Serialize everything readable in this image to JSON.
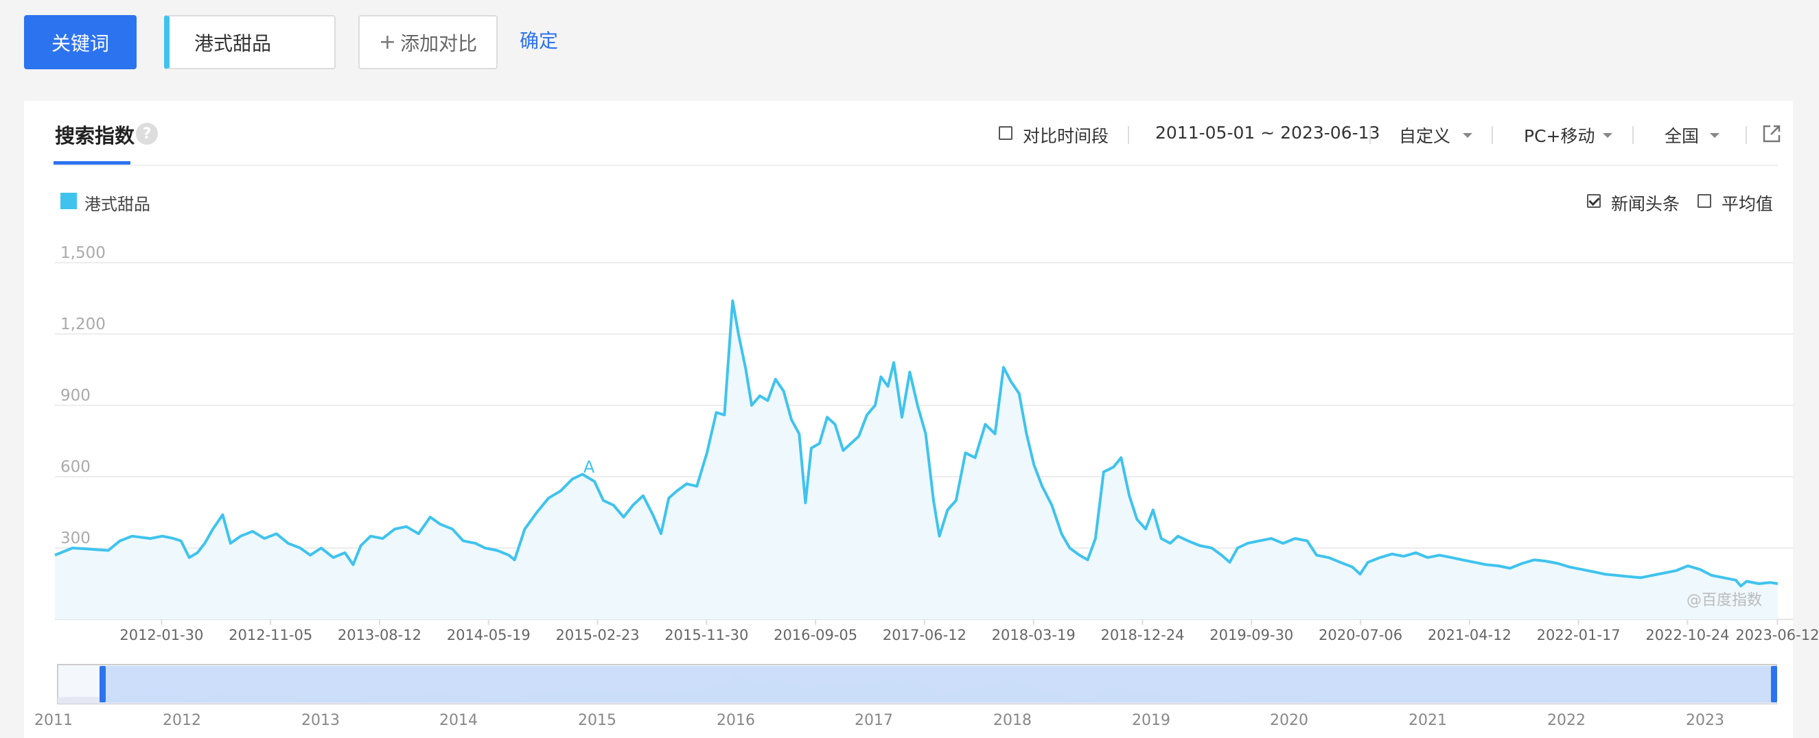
{
  "toolbar": {
    "keyword_button": "关键词",
    "keyword_value": "港式甜品",
    "add_compare_plus": "+",
    "add_compare_label": "添加对比",
    "confirm_link": "确定"
  },
  "panel": {
    "tab_title": "搜索指数",
    "help_icon_text": "?",
    "compare_period_label": "对比时间段",
    "compare_period_checked": false,
    "date_range": "2011-05-01 ~ 2023-06-13",
    "custom_label": "自定义",
    "device_label": "PC+移动",
    "region_label": "全国",
    "news_label": "新闻头条",
    "news_checked": true,
    "average_label": "平均值",
    "average_checked": false,
    "watermark": "@百度指数"
  },
  "colors": {
    "accent": "#2c73f0",
    "series": "#3fc3ee",
    "area_fill": "#eef8fd"
  },
  "chart_data": {
    "type": "area",
    "legend": [
      {
        "name": "港式甜品",
        "color": "#3fc3ee"
      }
    ],
    "y_ticks": [
      "1,500",
      "1,200",
      "900",
      "600",
      "300"
    ],
    "y_tick_values": [
      1500,
      1200,
      900,
      600,
      300
    ],
    "ylim": [
      0,
      1500
    ],
    "x_tick_labels": [
      "2012-01-30",
      "2012-11-05",
      "2013-08-12",
      "2014-05-19",
      "2015-02-23",
      "2015-11-30",
      "2016-09-05",
      "2017-06-12",
      "2018-03-19",
      "2018-12-24",
      "2019-09-30",
      "2020-07-06",
      "2021-04-12",
      "2022-01-17",
      "2022-10-24",
      "2023-06-12"
    ],
    "xlim": [
      "2011-05-01",
      "2023-06-13"
    ],
    "annotations": [
      {
        "label": "A",
        "date": "2015-02-01",
        "value": 600
      }
    ],
    "grid": true,
    "series": [
      {
        "name": "港式甜品",
        "points": [
          [
            "2011-05-01",
            270
          ],
          [
            "2011-06-15",
            300
          ],
          [
            "2011-08-01",
            295
          ],
          [
            "2011-09-15",
            290
          ],
          [
            "2011-10-15",
            330
          ],
          [
            "2011-11-15",
            350
          ],
          [
            "2012-01-01",
            340
          ],
          [
            "2012-02-01",
            350
          ],
          [
            "2012-03-01",
            340
          ],
          [
            "2012-03-20",
            330
          ],
          [
            "2012-04-10",
            260
          ],
          [
            "2012-05-01",
            280
          ],
          [
            "2012-05-20",
            320
          ],
          [
            "2012-06-10",
            380
          ],
          [
            "2012-07-05",
            440
          ],
          [
            "2012-07-25",
            320
          ],
          [
            "2012-08-20",
            350
          ],
          [
            "2012-09-20",
            370
          ],
          [
            "2012-10-20",
            340
          ],
          [
            "2012-11-20",
            360
          ],
          [
            "2012-12-20",
            320
          ],
          [
            "2013-01-20",
            300
          ],
          [
            "2013-02-15",
            270
          ],
          [
            "2013-03-15",
            300
          ],
          [
            "2013-04-15",
            260
          ],
          [
            "2013-05-15",
            280
          ],
          [
            "2013-06-05",
            230
          ],
          [
            "2013-06-25",
            310
          ],
          [
            "2013-07-20",
            350
          ],
          [
            "2013-08-20",
            340
          ],
          [
            "2013-09-20",
            380
          ],
          [
            "2013-10-20",
            390
          ],
          [
            "2013-11-20",
            360
          ],
          [
            "2013-12-20",
            430
          ],
          [
            "2014-01-15",
            400
          ],
          [
            "2014-02-15",
            380
          ],
          [
            "2014-03-15",
            330
          ],
          [
            "2014-04-15",
            320
          ],
          [
            "2014-05-10",
            300
          ],
          [
            "2014-06-10",
            290
          ],
          [
            "2014-07-10",
            270
          ],
          [
            "2014-07-25",
            250
          ],
          [
            "2014-08-20",
            380
          ],
          [
            "2014-09-20",
            450
          ],
          [
            "2014-10-20",
            510
          ],
          [
            "2014-11-20",
            540
          ],
          [
            "2014-12-20",
            590
          ],
          [
            "2015-01-15",
            610
          ],
          [
            "2015-02-15",
            580
          ],
          [
            "2015-03-10",
            500
          ],
          [
            "2015-04-05",
            480
          ],
          [
            "2015-05-01",
            430
          ],
          [
            "2015-05-25",
            480
          ],
          [
            "2015-06-20",
            520
          ],
          [
            "2015-07-15",
            440
          ],
          [
            "2015-08-05",
            360
          ],
          [
            "2015-08-25",
            510
          ],
          [
            "2015-09-15",
            540
          ],
          [
            "2015-10-10",
            570
          ],
          [
            "2015-11-05",
            560
          ],
          [
            "2015-12-01",
            700
          ],
          [
            "2015-12-25",
            870
          ],
          [
            "2016-01-15",
            860
          ],
          [
            "2016-02-05",
            1340
          ],
          [
            "2016-02-20",
            1200
          ],
          [
            "2016-03-10",
            1050
          ],
          [
            "2016-03-25",
            900
          ],
          [
            "2016-04-15",
            940
          ],
          [
            "2016-05-05",
            920
          ],
          [
            "2016-05-25",
            1010
          ],
          [
            "2016-06-15",
            960
          ],
          [
            "2016-07-05",
            840
          ],
          [
            "2016-07-25",
            780
          ],
          [
            "2016-08-10",
            490
          ],
          [
            "2016-08-25",
            720
          ],
          [
            "2016-09-15",
            740
          ],
          [
            "2016-10-05",
            850
          ],
          [
            "2016-10-25",
            820
          ],
          [
            "2016-11-15",
            710
          ],
          [
            "2016-12-05",
            740
          ],
          [
            "2016-12-25",
            770
          ],
          [
            "2017-01-15",
            860
          ],
          [
            "2017-02-05",
            900
          ],
          [
            "2017-02-20",
            1020
          ],
          [
            "2017-03-10",
            980
          ],
          [
            "2017-03-25",
            1080
          ],
          [
            "2017-04-15",
            850
          ],
          [
            "2017-05-05",
            1040
          ],
          [
            "2017-05-25",
            900
          ],
          [
            "2017-06-15",
            780
          ],
          [
            "2017-07-05",
            500
          ],
          [
            "2017-07-20",
            350
          ],
          [
            "2017-08-10",
            460
          ],
          [
            "2017-09-01",
            500
          ],
          [
            "2017-09-25",
            700
          ],
          [
            "2017-10-20",
            680
          ],
          [
            "2017-11-15",
            820
          ],
          [
            "2017-12-10",
            780
          ],
          [
            "2018-01-01",
            1060
          ],
          [
            "2018-01-20",
            1000
          ],
          [
            "2018-02-10",
            950
          ],
          [
            "2018-03-01",
            780
          ],
          [
            "2018-03-20",
            650
          ],
          [
            "2018-04-10",
            560
          ],
          [
            "2018-05-05",
            480
          ],
          [
            "2018-05-30",
            360
          ],
          [
            "2018-06-20",
            300
          ],
          [
            "2018-07-15",
            270
          ],
          [
            "2018-08-05",
            250
          ],
          [
            "2018-08-25",
            340
          ],
          [
            "2018-09-15",
            620
          ],
          [
            "2018-10-10",
            640
          ],
          [
            "2018-10-30",
            680
          ],
          [
            "2018-11-20",
            520
          ],
          [
            "2018-12-10",
            420
          ],
          [
            "2019-01-01",
            380
          ],
          [
            "2019-01-20",
            460
          ],
          [
            "2019-02-10",
            340
          ],
          [
            "2019-03-05",
            320
          ],
          [
            "2019-03-25",
            350
          ],
          [
            "2019-04-20",
            330
          ],
          [
            "2019-05-20",
            310
          ],
          [
            "2019-06-20",
            300
          ],
          [
            "2019-07-15",
            270
          ],
          [
            "2019-08-05",
            240
          ],
          [
            "2019-08-25",
            300
          ],
          [
            "2019-09-20",
            320
          ],
          [
            "2019-10-20",
            330
          ],
          [
            "2019-11-20",
            340
          ],
          [
            "2019-12-20",
            320
          ],
          [
            "2020-01-20",
            340
          ],
          [
            "2020-02-20",
            330
          ],
          [
            "2020-03-15",
            270
          ],
          [
            "2020-04-15",
            260
          ],
          [
            "2020-05-15",
            240
          ],
          [
            "2020-06-15",
            220
          ],
          [
            "2020-07-05",
            190
          ],
          [
            "2020-07-25",
            240
          ],
          [
            "2020-08-25",
            260
          ],
          [
            "2020-09-25",
            275
          ],
          [
            "2020-10-25",
            265
          ],
          [
            "2020-11-25",
            280
          ],
          [
            "2020-12-25",
            260
          ],
          [
            "2021-01-25",
            270
          ],
          [
            "2021-02-25",
            260
          ],
          [
            "2021-03-25",
            250
          ],
          [
            "2021-04-25",
            240
          ],
          [
            "2021-05-25",
            230
          ],
          [
            "2021-06-25",
            225
          ],
          [
            "2021-07-25",
            215
          ],
          [
            "2021-08-25",
            235
          ],
          [
            "2021-09-25",
            250
          ],
          [
            "2021-10-25",
            245
          ],
          [
            "2021-11-25",
            235
          ],
          [
            "2021-12-25",
            220
          ],
          [
            "2022-01-25",
            210
          ],
          [
            "2022-02-25",
            200
          ],
          [
            "2022-03-25",
            190
          ],
          [
            "2022-04-25",
            185
          ],
          [
            "2022-05-25",
            180
          ],
          [
            "2022-06-25",
            175
          ],
          [
            "2022-07-25",
            185
          ],
          [
            "2022-08-25",
            195
          ],
          [
            "2022-09-25",
            205
          ],
          [
            "2022-10-25",
            225
          ],
          [
            "2022-11-25",
            210
          ],
          [
            "2022-12-25",
            185
          ],
          [
            "2023-01-25",
            175
          ],
          [
            "2023-02-25",
            165
          ],
          [
            "2023-03-10",
            140
          ],
          [
            "2023-03-25",
            160
          ],
          [
            "2023-04-25",
            150
          ],
          [
            "2023-05-25",
            155
          ],
          [
            "2023-06-13",
            150
          ]
        ]
      }
    ],
    "navigator": {
      "year_labels": [
        "2011",
        "2012",
        "2013",
        "2014",
        "2015",
        "2016",
        "2017",
        "2018",
        "2019",
        "2020",
        "2021",
        "2022",
        "2023"
      ],
      "selection": [
        "2011-05-01",
        "2023-06-13"
      ]
    }
  }
}
